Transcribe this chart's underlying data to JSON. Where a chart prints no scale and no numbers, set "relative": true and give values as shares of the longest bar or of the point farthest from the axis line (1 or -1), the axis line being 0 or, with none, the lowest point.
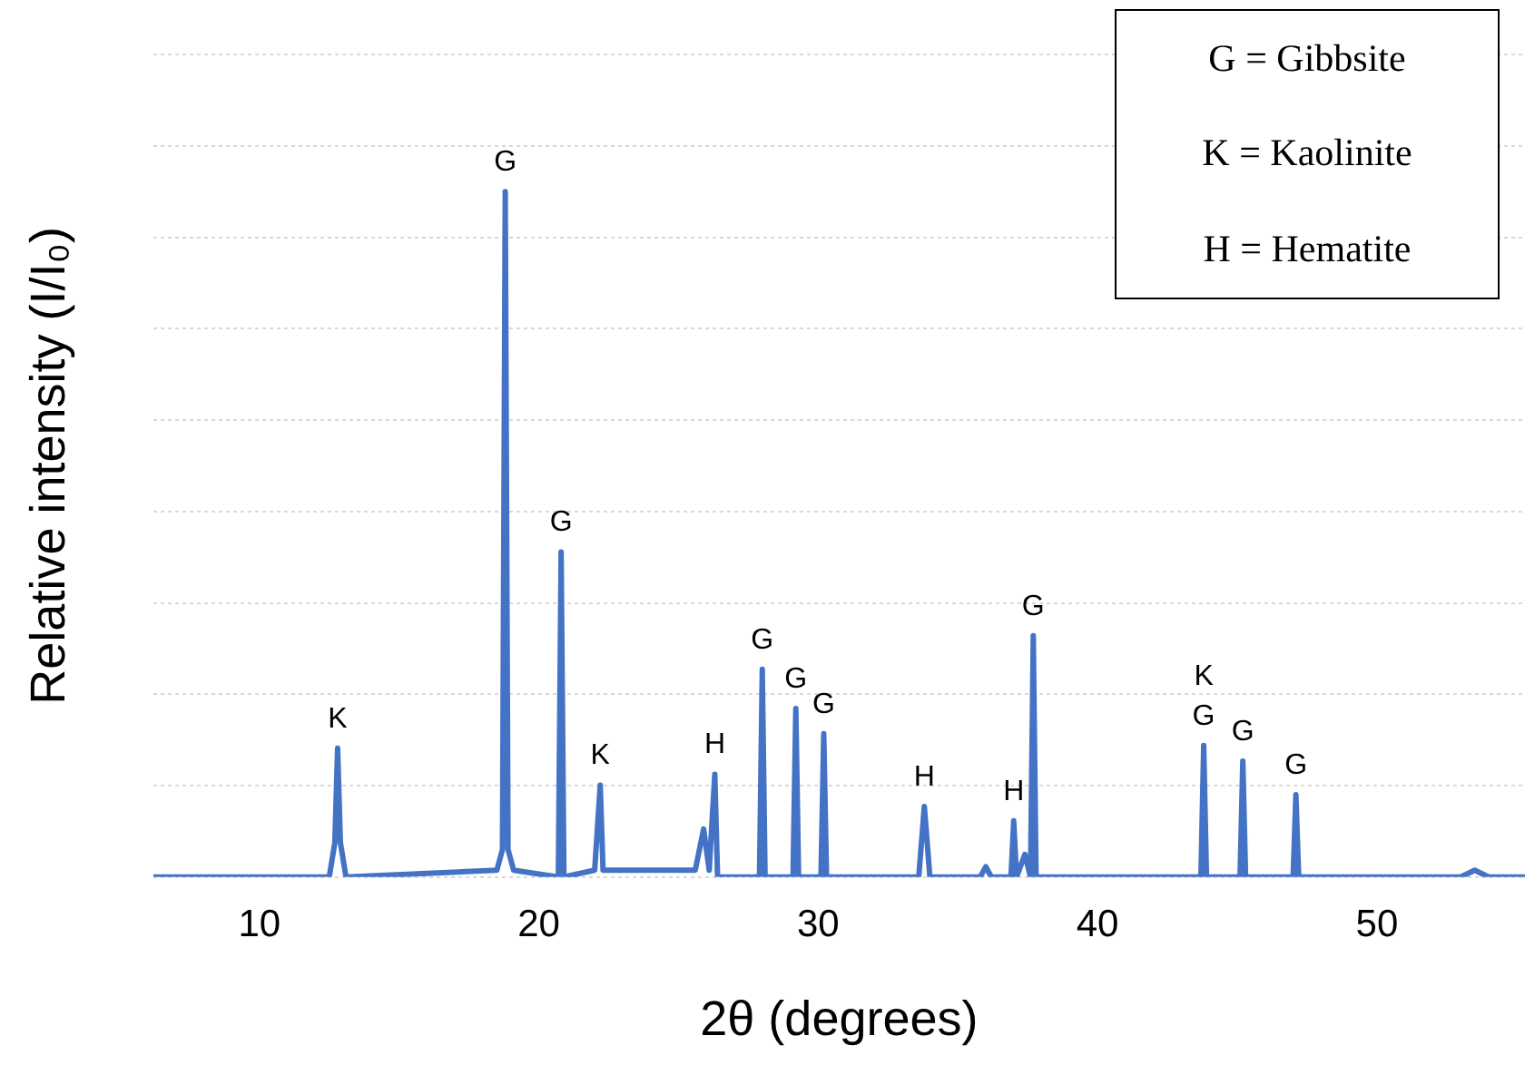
{
  "chart_data": {
    "type": "line",
    "relative": true,
    "xlabel": "2θ (degrees)",
    "ylabel": "Relative intensity (I/I₀)",
    "xlim": [
      6.2,
      55.3
    ],
    "xticks": [
      10,
      20,
      30,
      40,
      50
    ],
    "grid": "y",
    "legend": false,
    "marker": "none",
    "line_style": "solid",
    "series": [
      {
        "color": "#4472c4",
        "x": [
          6.2,
          12.5,
          12.7,
          12.8,
          12.9,
          13.1,
          18.5,
          18.7,
          18.8,
          18.9,
          19.1,
          20.7,
          20.8,
          20.9,
          22.0,
          22.2,
          22.3,
          25.6,
          25.9,
          26.1,
          26.3,
          26.4,
          27.9,
          28.0,
          28.1,
          29.1,
          29.2,
          29.3,
          30.1,
          30.2,
          30.3,
          33.6,
          33.8,
          34.0,
          35.8,
          36.0,
          36.2,
          36.9,
          37.0,
          37.1,
          37.4,
          37.6,
          37.7,
          37.8,
          43.7,
          43.8,
          43.9,
          45.1,
          45.2,
          45.3,
          47.0,
          47.1,
          47.2,
          53.0,
          53.5,
          54.0,
          55.3
        ],
        "values": [
          0,
          0,
          0.05,
          0.188,
          0.05,
          0,
          0.01,
          0.04,
          1,
          0.04,
          0.01,
          0,
          0.474,
          0,
          0.01,
          0.134,
          0.01,
          0.01,
          0.07,
          0.01,
          0.15,
          0,
          0,
          0.303,
          0,
          0,
          0.246,
          0,
          0,
          0.209,
          0,
          0,
          0.103,
          0,
          0,
          0.015,
          0,
          0,
          0.082,
          0,
          0.033,
          0,
          0.352,
          0,
          0,
          0.192,
          0,
          0,
          0.169,
          0,
          0,
          0.12,
          0,
          0,
          0.01,
          0,
          0
        ]
      }
    ],
    "annotations": [
      "G = Gibbsite",
      "K = Kaolinite",
      "H = Hematite",
      {
        "text": "K",
        "x": 12.8,
        "y": 0.188
      },
      {
        "text": "G",
        "x": 18.8,
        "y": 1
      },
      {
        "text": "G",
        "x": 20.8,
        "y": 0.474
      },
      {
        "text": "K",
        "x": 22.2,
        "y": 0.134
      },
      {
        "text": "H",
        "x": 26.3,
        "y": 0.15
      },
      {
        "text": "G",
        "x": 28.0,
        "y": 0.303
      },
      {
        "text": "G",
        "x": 29.2,
        "y": 0.246
      },
      {
        "text": "G",
        "x": 30.2,
        "y": 0.209
      },
      {
        "text": "H",
        "x": 33.8,
        "y": 0.103
      },
      {
        "text": "H",
        "x": 37.0,
        "y": 0.082
      },
      {
        "text": "G",
        "x": 37.7,
        "y": 0.352
      },
      {
        "text": "G",
        "x": 43.8,
        "y": 0.192
      },
      {
        "text": "K",
        "x": 43.8,
        "y": 0.192
      },
      {
        "text": "G",
        "x": 45.2,
        "y": 0.169
      },
      {
        "text": "G",
        "x": 47.1,
        "y": 0.12
      }
    ]
  }
}
